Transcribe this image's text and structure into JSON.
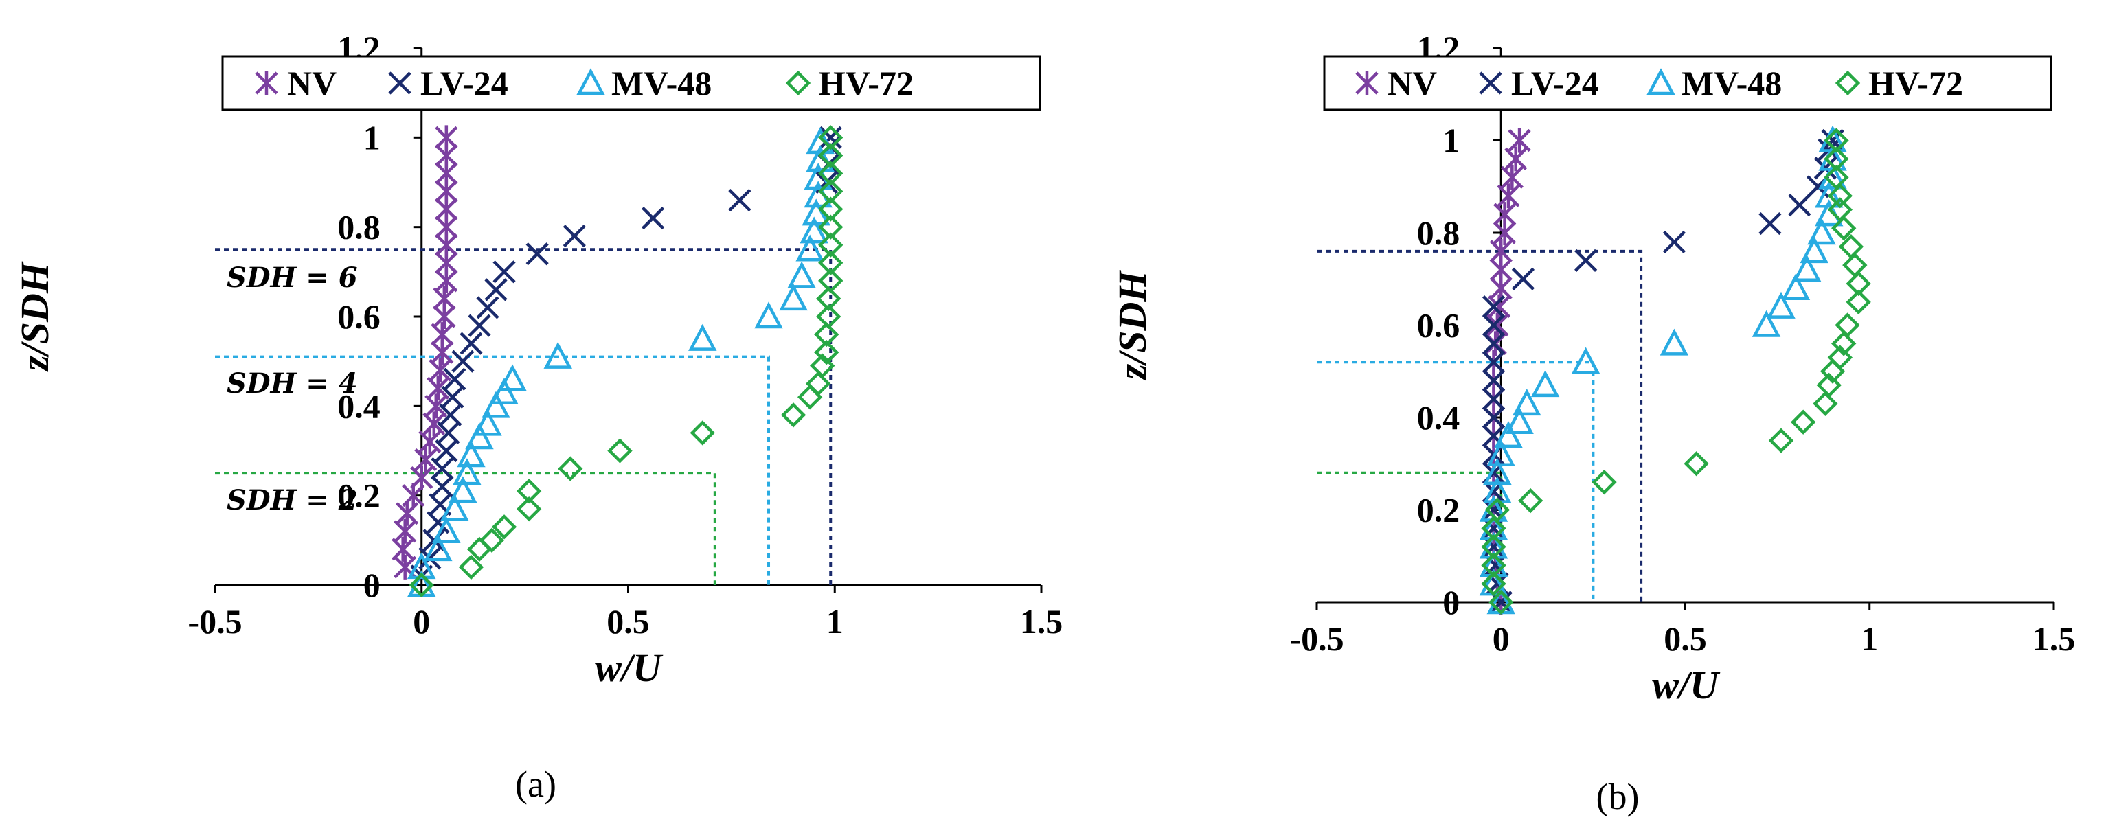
{
  "colors": {
    "NV": "#7b3fa0",
    "LV-24": "#1a2a6c",
    "MV-48": "#29abe2",
    "HV-72": "#27a844"
  },
  "chart_data": [
    {
      "type": "scatter",
      "panel_label": "(a)",
      "xlabel": "w/U",
      "ylabel": "z/SDH",
      "xlim": [
        -0.5,
        1.5
      ],
      "ylim": [
        0,
        1.2
      ],
      "xticks": [
        "-0.5",
        "0",
        "0.5",
        "1",
        "1.5"
      ],
      "yticks": [
        "0",
        "0.2",
        "0.4",
        "0.6",
        "0.8",
        "1",
        "1.2"
      ],
      "legend": [
        "NV",
        "LV-24",
        "MV-48",
        "HV-72"
      ],
      "annotations": [
        "SDH = 6",
        "SDH = 4",
        "SDH = 2"
      ],
      "ref_lines": [
        {
          "series": "LV-24",
          "z": 0.75,
          "x_end": 0.99
        },
        {
          "series": "MV-48",
          "z": 0.51,
          "x_end": 0.84
        },
        {
          "series": "HV-72",
          "z": 0.25,
          "x_end": 0.71
        }
      ],
      "series": [
        {
          "name": "NV",
          "marker": "asterisk",
          "points": [
            [
              -0.04,
              0.04
            ],
            [
              -0.045,
              0.08
            ],
            [
              -0.04,
              0.12
            ],
            [
              -0.035,
              0.16
            ],
            [
              -0.02,
              0.2
            ],
            [
              0,
              0.24
            ],
            [
              0.01,
              0.28
            ],
            [
              0.02,
              0.32
            ],
            [
              0.03,
              0.36
            ],
            [
              0.035,
              0.4
            ],
            [
              0.04,
              0.44
            ],
            [
              0.045,
              0.48
            ],
            [
              0.05,
              0.52
            ],
            [
              0.05,
              0.56
            ],
            [
              0.055,
              0.6
            ],
            [
              0.055,
              0.64
            ],
            [
              0.06,
              0.68
            ],
            [
              0.06,
              0.72
            ],
            [
              0.06,
              0.76
            ],
            [
              0.06,
              0.8
            ],
            [
              0.06,
              0.84
            ],
            [
              0.06,
              0.88
            ],
            [
              0.06,
              0.92
            ],
            [
              0.06,
              0.96
            ],
            [
              0.06,
              1.0
            ]
          ]
        },
        {
          "name": "LV-24",
          "marker": "x",
          "points": [
            [
              0,
              0.02
            ],
            [
              0.02,
              0.06
            ],
            [
              0.03,
              0.1
            ],
            [
              0.04,
              0.14
            ],
            [
              0.045,
              0.18
            ],
            [
              0.05,
              0.22
            ],
            [
              0.05,
              0.26
            ],
            [
              0.06,
              0.3
            ],
            [
              0.065,
              0.34
            ],
            [
              0.07,
              0.38
            ],
            [
              0.075,
              0.42
            ],
            [
              0.08,
              0.46
            ],
            [
              0.1,
              0.5
            ],
            [
              0.12,
              0.54
            ],
            [
              0.14,
              0.58
            ],
            [
              0.16,
              0.62
            ],
            [
              0.18,
              0.66
            ],
            [
              0.2,
              0.7
            ],
            [
              0.28,
              0.74
            ],
            [
              0.37,
              0.78
            ],
            [
              0.56,
              0.82
            ],
            [
              0.77,
              0.86
            ],
            [
              0.98,
              0.9
            ],
            [
              0.985,
              0.94
            ],
            [
              0.99,
              0.98
            ],
            [
              0.99,
              1.0
            ]
          ]
        },
        {
          "name": "MV-48",
          "marker": "triangle",
          "points": [
            [
              0,
              0.0
            ],
            [
              0,
              0.04
            ],
            [
              0.04,
              0.08
            ],
            [
              0.06,
              0.12
            ],
            [
              0.08,
              0.17
            ],
            [
              0.1,
              0.21
            ],
            [
              0.11,
              0.25
            ],
            [
              0.12,
              0.29
            ],
            [
              0.14,
              0.33
            ],
            [
              0.16,
              0.36
            ],
            [
              0.18,
              0.4
            ],
            [
              0.2,
              0.43
            ],
            [
              0.22,
              0.46
            ],
            [
              0.33,
              0.51
            ],
            [
              0.68,
              0.55
            ],
            [
              0.84,
              0.6
            ],
            [
              0.9,
              0.64
            ],
            [
              0.92,
              0.69
            ],
            [
              0.94,
              0.75
            ],
            [
              0.95,
              0.79
            ],
            [
              0.955,
              0.83
            ],
            [
              0.96,
              0.87
            ],
            [
              0.96,
              0.91
            ],
            [
              0.965,
              0.95
            ],
            [
              0.965,
              0.99
            ]
          ]
        },
        {
          "name": "HV-72",
          "marker": "diamond",
          "points": [
            [
              0,
              0.0
            ],
            [
              0.12,
              0.04
            ],
            [
              0.14,
              0.08
            ],
            [
              0.17,
              0.1
            ],
            [
              0.2,
              0.13
            ],
            [
              0.26,
              0.17
            ],
            [
              0.26,
              0.21
            ],
            [
              0.36,
              0.26
            ],
            [
              0.48,
              0.3
            ],
            [
              0.68,
              0.34
            ],
            [
              0.9,
              0.38
            ],
            [
              0.94,
              0.42
            ],
            [
              0.96,
              0.45
            ],
            [
              0.97,
              0.49
            ],
            [
              0.98,
              0.52
            ],
            [
              0.98,
              0.56
            ],
            [
              0.985,
              0.6
            ],
            [
              0.985,
              0.64
            ],
            [
              0.99,
              0.68
            ],
            [
              0.99,
              0.72
            ],
            [
              0.99,
              0.76
            ],
            [
              0.99,
              0.8
            ],
            [
              0.99,
              0.84
            ],
            [
              0.99,
              0.88
            ],
            [
              0.99,
              0.92
            ],
            [
              0.99,
              0.96
            ],
            [
              0.99,
              1.0
            ]
          ]
        }
      ]
    },
    {
      "type": "scatter",
      "panel_label": "(b)",
      "xlabel": "w/U",
      "ylabel": "z/SDH",
      "xlim": [
        -0.5,
        1.5
      ],
      "ylim": [
        0,
        1.2
      ],
      "xticks": [
        "-0.5",
        "0",
        "0.5",
        "1",
        "1.5"
      ],
      "yticks": [
        "0",
        "0.2",
        "0.4",
        "0.6",
        "0.8",
        "1",
        "1.2"
      ],
      "legend": [
        "NV",
        "LV-24",
        "MV-48",
        "HV-72"
      ],
      "annotations": [],
      "ref_lines": [
        {
          "series": "LV-24",
          "z": 0.76,
          "x_end": 0.38
        },
        {
          "series": "MV-48",
          "z": 0.52,
          "x_end": 0.25
        },
        {
          "series": "HV-72",
          "z": 0.28,
          "x_end": 0.0
        }
      ],
      "series": [
        {
          "name": "NV",
          "marker": "asterisk",
          "points": [
            [
              0,
              0.0
            ],
            [
              -0.01,
              0.04
            ],
            [
              -0.015,
              0.08
            ],
            [
              -0.02,
              0.12
            ],
            [
              -0.02,
              0.16
            ],
            [
              -0.02,
              0.2
            ],
            [
              -0.02,
              0.24
            ],
            [
              -0.02,
              0.28
            ],
            [
              -0.02,
              0.32
            ],
            [
              -0.02,
              0.36
            ],
            [
              -0.02,
              0.4
            ],
            [
              -0.02,
              0.44
            ],
            [
              -0.02,
              0.48
            ],
            [
              -0.02,
              0.52
            ],
            [
              -0.015,
              0.56
            ],
            [
              -0.01,
              0.6
            ],
            [
              -0.005,
              0.64
            ],
            [
              0,
              0.68
            ],
            [
              0,
              0.72
            ],
            [
              0,
              0.76
            ],
            [
              0.01,
              0.8
            ],
            [
              0.01,
              0.84
            ],
            [
              0.02,
              0.88
            ],
            [
              0.03,
              0.92
            ],
            [
              0.04,
              0.96
            ],
            [
              0.05,
              1.0
            ]
          ]
        },
        {
          "name": "LV-24",
          "marker": "x",
          "points": [
            [
              0,
              0.0
            ],
            [
              -0.01,
              0.04
            ],
            [
              -0.015,
              0.08
            ],
            [
              -0.02,
              0.12
            ],
            [
              -0.02,
              0.16
            ],
            [
              -0.02,
              0.2
            ],
            [
              -0.02,
              0.24
            ],
            [
              -0.02,
              0.28
            ],
            [
              -0.02,
              0.32
            ],
            [
              -0.02,
              0.36
            ],
            [
              -0.02,
              0.4
            ],
            [
              -0.02,
              0.44
            ],
            [
              -0.02,
              0.48
            ],
            [
              -0.02,
              0.52
            ],
            [
              -0.02,
              0.56
            ],
            [
              -0.02,
              0.6
            ],
            [
              -0.02,
              0.64
            ],
            [
              0.06,
              0.7
            ],
            [
              0.23,
              0.74
            ],
            [
              0.47,
              0.78
            ],
            [
              0.73,
              0.82
            ],
            [
              0.81,
              0.86
            ],
            [
              0.86,
              0.9
            ],
            [
              0.88,
              0.94
            ],
            [
              0.89,
              0.98
            ],
            [
              0.9,
              1.0
            ]
          ]
        },
        {
          "name": "MV-48",
          "marker": "triangle",
          "points": [
            [
              0,
              0.0
            ],
            [
              -0.02,
              0.04
            ],
            [
              -0.02,
              0.08
            ],
            [
              -0.02,
              0.12
            ],
            [
              -0.02,
              0.16
            ],
            [
              -0.02,
              0.2
            ],
            [
              -0.01,
              0.24
            ],
            [
              -0.01,
              0.28
            ],
            [
              0,
              0.32
            ],
            [
              0.02,
              0.36
            ],
            [
              0.05,
              0.39
            ],
            [
              0.07,
              0.43
            ],
            [
              0.12,
              0.47
            ],
            [
              0.23,
              0.52
            ],
            [
              0.47,
              0.56
            ],
            [
              0.72,
              0.6
            ],
            [
              0.76,
              0.64
            ],
            [
              0.8,
              0.68
            ],
            [
              0.83,
              0.72
            ],
            [
              0.85,
              0.76
            ],
            [
              0.87,
              0.8
            ],
            [
              0.89,
              0.84
            ],
            [
              0.89,
              0.88
            ],
            [
              0.9,
              0.92
            ],
            [
              0.9,
              0.96
            ],
            [
              0.9,
              1.0
            ]
          ]
        },
        {
          "name": "HV-72",
          "marker": "diamond",
          "points": [
            [
              0,
              0.0
            ],
            [
              -0.02,
              0.04
            ],
            [
              -0.02,
              0.08
            ],
            [
              -0.02,
              0.12
            ],
            [
              -0.02,
              0.16
            ],
            [
              -0.01,
              0.2
            ],
            [
              0.08,
              0.22
            ],
            [
              0.28,
              0.26
            ],
            [
              0.53,
              0.3
            ],
            [
              0.76,
              0.35
            ],
            [
              0.82,
              0.39
            ],
            [
              0.88,
              0.43
            ],
            [
              0.89,
              0.47
            ],
            [
              0.9,
              0.5
            ],
            [
              0.92,
              0.53
            ],
            [
              0.93,
              0.56
            ],
            [
              0.94,
              0.6
            ],
            [
              0.97,
              0.65
            ],
            [
              0.97,
              0.69
            ],
            [
              0.96,
              0.73
            ],
            [
              0.95,
              0.77
            ],
            [
              0.93,
              0.81
            ],
            [
              0.92,
              0.85
            ],
            [
              0.92,
              0.88
            ],
            [
              0.91,
              0.92
            ],
            [
              0.91,
              0.96
            ],
            [
              0.91,
              1.0
            ]
          ]
        }
      ]
    }
  ]
}
